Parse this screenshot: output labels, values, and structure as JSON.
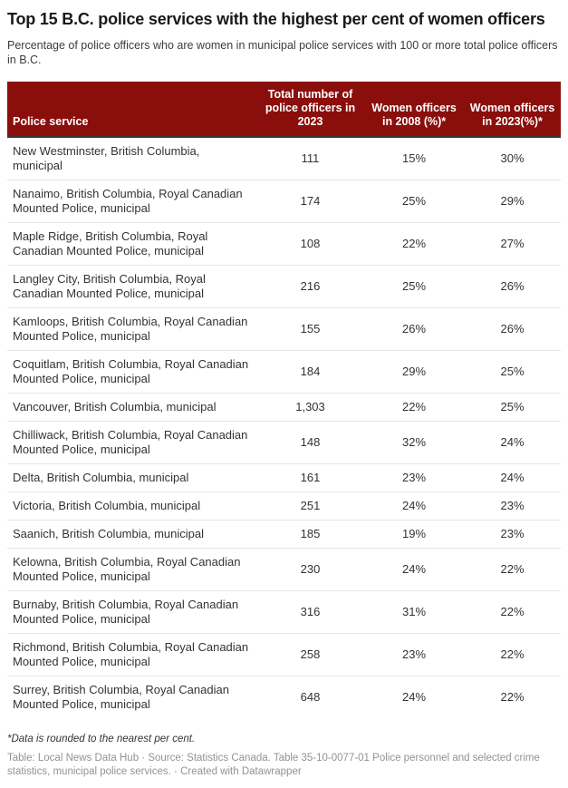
{
  "colors": {
    "header_bg": "#8a0f0c",
    "header_text": "#ffffff",
    "body_text": "#333333",
    "row_divider": "#e5e5e5",
    "footer_text": "#939393"
  },
  "header": {
    "title": "Top 15 B.C. police services with the highest per cent of women officers",
    "subtitle": "Percentage of police officers who are women in municipal police services with 100 or more total police officers in B.C."
  },
  "table": {
    "columns": [
      "Police service",
      "Total number of police officers in 2023",
      "Women officers in 2008 (%)*",
      "Women officers in 2023(%)*"
    ],
    "rows": [
      {
        "service": "New Westminster, British Columbia, municipal",
        "total": "111",
        "w2008": "15%",
        "w2023": "30%"
      },
      {
        "service": "Nanaimo, British Columbia, Royal Canadian Mounted Police, municipal",
        "total": "174",
        "w2008": "25%",
        "w2023": "29%"
      },
      {
        "service": "Maple Ridge, British Columbia, Royal Canadian Mounted Police, municipal",
        "total": "108",
        "w2008": "22%",
        "w2023": "27%"
      },
      {
        "service": "Langley City, British Columbia, Royal Canadian Mounted Police, municipal",
        "total": "216",
        "w2008": "25%",
        "w2023": "26%"
      },
      {
        "service": "Kamloops, British Columbia, Royal Canadian Mounted Police, municipal",
        "total": "155",
        "w2008": "26%",
        "w2023": "26%"
      },
      {
        "service": "Coquitlam, British Columbia, Royal Canadian Mounted Police, municipal",
        "total": "184",
        "w2008": "29%",
        "w2023": "25%"
      },
      {
        "service": "Vancouver, British Columbia, municipal",
        "total": "1,303",
        "w2008": "22%",
        "w2023": "25%"
      },
      {
        "service": "Chilliwack, British Columbia, Royal Canadian Mounted Police, municipal",
        "total": "148",
        "w2008": "32%",
        "w2023": "24%"
      },
      {
        "service": "Delta, British Columbia, municipal",
        "total": "161",
        "w2008": "23%",
        "w2023": "24%"
      },
      {
        "service": "Victoria, British Columbia, municipal",
        "total": "251",
        "w2008": "24%",
        "w2023": "23%"
      },
      {
        "service": "Saanich, British Columbia, municipal",
        "total": "185",
        "w2008": "19%",
        "w2023": "23%"
      },
      {
        "service": "Kelowna, British Columbia, Royal Canadian Mounted Police, municipal",
        "total": "230",
        "w2008": "24%",
        "w2023": "22%"
      },
      {
        "service": "Burnaby, British Columbia, Royal Canadian Mounted Police, municipal",
        "total": "316",
        "w2008": "31%",
        "w2023": "22%"
      },
      {
        "service": "Richmond, British Columbia, Royal Canadian Mounted Police, municipal",
        "total": "258",
        "w2008": "23%",
        "w2023": "22%"
      },
      {
        "service": "Surrey, British Columbia, Royal Canadian Mounted Police, municipal",
        "total": "648",
        "w2008": "24%",
        "w2023": "22%"
      }
    ]
  },
  "footnote": "*Data is rounded to the nearest per cent.",
  "byline": "Table: Local News Data Hub · Source: Statistics Canada. Table 35-10-0077-01 Police personnel and selected crime statistics, municipal police services. · Created with Datawrapper",
  "chart_data": {
    "type": "table",
    "title": "Top 15 B.C. police services with the highest per cent of women officers",
    "subtitle": "Percentage of police officers who are women in municipal police services with 100 or more total police officers in B.C.",
    "columns": [
      "Police service",
      "Total number of police officers in 2023",
      "Women officers in 2008 (%)*",
      "Women officers in 2023(%)*"
    ],
    "rows": [
      [
        "New Westminster, British Columbia, municipal",
        111,
        "15%",
        "30%"
      ],
      [
        "Nanaimo, British Columbia, Royal Canadian Mounted Police, municipal",
        174,
        "25%",
        "29%"
      ],
      [
        "Maple Ridge, British Columbia, Royal Canadian Mounted Police, municipal",
        108,
        "22%",
        "27%"
      ],
      [
        "Langley City, British Columbia, Royal Canadian Mounted Police, municipal",
        216,
        "25%",
        "26%"
      ],
      [
        "Kamloops, British Columbia, Royal Canadian Mounted Police, municipal",
        155,
        "26%",
        "26%"
      ],
      [
        "Coquitlam, British Columbia, Royal Canadian Mounted Police, municipal",
        184,
        "29%",
        "25%"
      ],
      [
        "Vancouver, British Columbia, municipal",
        1303,
        "22%",
        "25%"
      ],
      [
        "Chilliwack, British Columbia, Royal Canadian Mounted Police, municipal",
        148,
        "32%",
        "24%"
      ],
      [
        "Delta, British Columbia, municipal",
        161,
        "23%",
        "24%"
      ],
      [
        "Victoria, British Columbia, municipal",
        251,
        "24%",
        "23%"
      ],
      [
        "Saanich, British Columbia, municipal",
        185,
        "19%",
        "23%"
      ],
      [
        "Kelowna, British Columbia, Royal Canadian Mounted Police, municipal",
        230,
        "24%",
        "22%"
      ],
      [
        "Burnaby, British Columbia, Royal Canadian Mounted Police, municipal",
        316,
        "31%",
        "22%"
      ],
      [
        "Richmond, British Columbia, Royal Canadian Mounted Police, municipal",
        258,
        "23%",
        "22%"
      ],
      [
        "Surrey, British Columbia, Royal Canadian Mounted Police, municipal",
        648,
        "24%",
        "22%"
      ]
    ],
    "legend_position": "none",
    "grid": "row-dividers"
  }
}
